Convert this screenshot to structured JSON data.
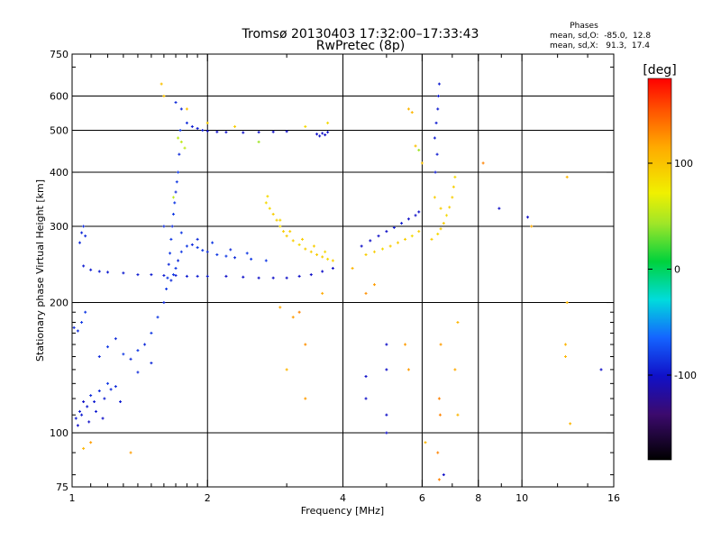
{
  "chart_data": {
    "type": "scatter",
    "title": "Tromsø 20130403 17:32:00–17:33:43",
    "subtitle": "RwPretec (8p)",
    "xlabel": "Frequency [MHz]",
    "ylabel": "Stationary phase Virtual Height [km]",
    "xscale": "log",
    "yscale": "log",
    "xlim": [
      1,
      16
    ],
    "ylim": [
      75,
      750
    ],
    "x_ticks": [
      1,
      2,
      4,
      6,
      8,
      10,
      16
    ],
    "y_ticks": [
      75,
      100,
      200,
      300,
      400,
      500,
      600,
      750
    ],
    "x_minor_ticks": [
      1.1,
      1.2,
      1.3,
      1.4,
      1.5,
      1.6,
      1.7,
      1.8,
      1.9,
      3,
      5,
      7,
      9,
      12,
      14
    ],
    "y_minor_ticks": [
      80,
      90,
      110,
      120,
      130,
      140,
      150,
      160,
      170,
      180,
      190,
      700
    ],
    "x_grid": [
      2,
      4,
      6,
      8,
      10
    ],
    "y_grid": [
      100,
      200,
      300,
      400,
      500,
      600
    ],
    "grid": true,
    "stats": {
      "heading": "Phases",
      "line_o": "mean, sd,O:  -85.0,  12.8",
      "line_x": "mean, sd,X:   91.3,  17.4"
    },
    "colorbar": {
      "label": "[deg]",
      "ticks": [
        100,
        0,
        -100
      ],
      "range": [
        -180,
        180
      ]
    },
    "series": [
      {
        "points": [
          [
            1.02,
            108,
            -95
          ],
          [
            1.04,
            112,
            -95
          ],
          [
            1.06,
            118,
            -100
          ],
          [
            1.08,
            115,
            -95
          ],
          [
            1.1,
            122,
            -90
          ],
          [
            1.12,
            118,
            -95
          ],
          [
            1.15,
            125,
            -90
          ],
          [
            1.18,
            120,
            -95
          ],
          [
            1.2,
            130,
            -85
          ],
          [
            1.22,
            126,
            -90
          ],
          [
            1.25,
            128,
            -90
          ],
          [
            1.28,
            118,
            -95
          ],
          [
            1.03,
            104,
            -100
          ],
          [
            1.05,
            110,
            -95
          ],
          [
            1.09,
            106,
            -100
          ],
          [
            1.13,
            112,
            -95
          ],
          [
            1.17,
            108,
            -100
          ],
          [
            1.01,
            175,
            -90
          ],
          [
            1.03,
            172,
            -90
          ],
          [
            1.05,
            180,
            -85
          ],
          [
            1.07,
            190,
            -85
          ],
          [
            1.15,
            150,
            -90
          ],
          [
            1.2,
            158,
            -85
          ],
          [
            1.25,
            165,
            -90
          ],
          [
            1.3,
            152,
            -85
          ],
          [
            1.35,
            148,
            -90
          ],
          [
            1.4,
            155,
            -85
          ],
          [
            1.45,
            160,
            -90
          ],
          [
            1.5,
            170,
            -85
          ],
          [
            1.55,
            185,
            -85
          ],
          [
            1.6,
            200,
            -90
          ],
          [
            1.62,
            215,
            -85
          ],
          [
            1.63,
            228,
            -85
          ],
          [
            1.64,
            245,
            -90
          ],
          [
            1.65,
            260,
            -85
          ],
          [
            1.66,
            280,
            -85
          ],
          [
            1.67,
            300,
            -90
          ],
          [
            1.68,
            320,
            -85
          ],
          [
            1.69,
            340,
            -85
          ],
          [
            1.7,
            360,
            -90
          ],
          [
            1.71,
            380,
            -85
          ],
          [
            1.72,
            400,
            -85
          ],
          [
            1.73,
            440,
            -90
          ],
          [
            1.74,
            500,
            -85
          ],
          [
            1.66,
            225,
            -90
          ],
          [
            1.68,
            232,
            -85
          ],
          [
            1.7,
            240,
            -85
          ],
          [
            1.72,
            250,
            -90
          ],
          [
            1.75,
            262,
            -85
          ],
          [
            1.8,
            270,
            -85
          ],
          [
            1.85,
            272,
            -90
          ],
          [
            1.9,
            268,
            -85
          ],
          [
            1.95,
            264,
            -85
          ],
          [
            2.0,
            262,
            -90
          ],
          [
            2.1,
            258,
            -85
          ],
          [
            2.2,
            256,
            -85
          ],
          [
            2.3,
            254,
            -90
          ],
          [
            2.5,
            252,
            -85
          ],
          [
            2.7,
            250,
            -85
          ],
          [
            1.6,
            300,
            -90
          ],
          [
            1.75,
            290,
            -85
          ],
          [
            1.9,
            280,
            -90
          ],
          [
            2.05,
            275,
            -85
          ],
          [
            2.25,
            265,
            -90
          ],
          [
            2.45,
            260,
            -85
          ],
          [
            1.06,
            243,
            -95
          ],
          [
            1.1,
            238,
            -95
          ],
          [
            1.15,
            236,
            -95
          ],
          [
            1.2,
            235,
            -95
          ],
          [
            1.3,
            234,
            -95
          ],
          [
            1.4,
            232,
            -95
          ],
          [
            1.5,
            232,
            -95
          ],
          [
            1.6,
            231,
            -95
          ],
          [
            1.7,
            231,
            -95
          ],
          [
            1.8,
            230,
            -95
          ],
          [
            1.9,
            230,
            -95
          ],
          [
            2.0,
            230,
            -95
          ],
          [
            2.2,
            230,
            -100
          ],
          [
            2.4,
            229,
            -100
          ],
          [
            2.6,
            228,
            -100
          ],
          [
            2.8,
            228,
            -100
          ],
          [
            3.0,
            228,
            -100
          ],
          [
            3.2,
            230,
            -100
          ],
          [
            3.4,
            232,
            -100
          ],
          [
            3.6,
            236,
            -100
          ],
          [
            3.8,
            240,
            -100
          ],
          [
            1.04,
            275,
            -90
          ],
          [
            1.05,
            290,
            -90
          ],
          [
            1.06,
            300,
            -90
          ],
          [
            1.07,
            285,
            -90
          ],
          [
            1.7,
            580,
            -90
          ],
          [
            1.75,
            560,
            -90
          ],
          [
            1.8,
            520,
            -90
          ],
          [
            1.85,
            510,
            -95
          ],
          [
            1.9,
            505,
            -95
          ],
          [
            1.95,
            500,
            -95
          ],
          [
            2.0,
            498,
            -100
          ],
          [
            2.1,
            496,
            -100
          ],
          [
            2.2,
            495,
            -100
          ],
          [
            2.4,
            494,
            -100
          ],
          [
            2.6,
            495,
            -100
          ],
          [
            2.8,
            496,
            -100
          ],
          [
            3.0,
            497,
            -100
          ],
          [
            3.5,
            490,
            -100
          ],
          [
            3.55,
            485,
            -100
          ],
          [
            3.6,
            492,
            -100
          ],
          [
            3.65,
            488,
            -100
          ],
          [
            3.7,
            495,
            -100
          ],
          [
            4.4,
            270,
            -100
          ],
          [
            4.6,
            278,
            -100
          ],
          [
            4.8,
            285,
            -100
          ],
          [
            5.0,
            292,
            -100
          ],
          [
            5.2,
            298,
            -95
          ],
          [
            5.4,
            305,
            -95
          ],
          [
            5.6,
            312,
            -100
          ],
          [
            5.8,
            318,
            -100
          ],
          [
            5.9,
            324,
            -100
          ],
          [
            6.4,
            480,
            -95
          ],
          [
            6.45,
            520,
            -95
          ],
          [
            6.5,
            560,
            -95
          ],
          [
            6.52,
            600,
            -95
          ],
          [
            6.55,
            640,
            -95
          ],
          [
            6.48,
            440,
            -95
          ],
          [
            6.42,
            400,
            -95
          ],
          [
            5.0,
            100,
            -100
          ],
          [
            5.0,
            110,
            -100
          ],
          [
            5.0,
            140,
            -100
          ],
          [
            5.0,
            160,
            -100
          ],
          [
            4.5,
            120,
            -100
          ],
          [
            4.5,
            135,
            -100
          ],
          [
            6.7,
            80,
            -100
          ],
          [
            10.3,
            315,
            -100
          ],
          [
            8.9,
            330,
            -100
          ],
          [
            15.0,
            140,
            -100
          ],
          [
            1.4,
            138,
            -90
          ],
          [
            1.5,
            145,
            -90
          ]
        ]
      },
      {
        "points": [
          [
            2.7,
            340,
            95
          ],
          [
            2.75,
            330,
            95
          ],
          [
            2.8,
            320,
            100
          ],
          [
            2.85,
            310,
            100
          ],
          [
            2.9,
            300,
            95
          ],
          [
            2.95,
            292,
            100
          ],
          [
            3.0,
            285,
            100
          ],
          [
            3.1,
            278,
            100
          ],
          [
            3.2,
            272,
            95
          ],
          [
            3.3,
            266,
            100
          ],
          [
            3.4,
            262,
            100
          ],
          [
            3.5,
            258,
            100
          ],
          [
            3.6,
            255,
            100
          ],
          [
            3.7,
            252,
            95
          ],
          [
            3.8,
            250,
            100
          ],
          [
            2.72,
            352,
            95
          ],
          [
            2.9,
            310,
            95
          ],
          [
            3.05,
            292,
            100
          ],
          [
            3.25,
            280,
            100
          ],
          [
            3.45,
            270,
            100
          ],
          [
            3.65,
            262,
            95
          ],
          [
            4.5,
            258,
            100
          ],
          [
            4.7,
            262,
            100
          ],
          [
            4.9,
            266,
            95
          ],
          [
            5.1,
            270,
            100
          ],
          [
            5.3,
            275,
            100
          ],
          [
            5.5,
            280,
            100
          ],
          [
            5.7,
            285,
            95
          ],
          [
            5.9,
            292,
            100
          ],
          [
            6.3,
            280,
            100
          ],
          [
            6.5,
            288,
            95
          ],
          [
            6.6,
            296,
            100
          ],
          [
            6.7,
            305,
            100
          ],
          [
            6.8,
            318,
            95
          ],
          [
            6.9,
            332,
            100
          ],
          [
            7.0,
            350,
            100
          ],
          [
            7.05,
            370,
            100
          ],
          [
            7.1,
            390,
            95
          ],
          [
            1.58,
            640,
            105
          ],
          [
            1.6,
            600,
            105
          ],
          [
            1.8,
            560,
            105
          ],
          [
            2.0,
            520,
            100
          ],
          [
            2.3,
            510,
            100
          ],
          [
            3.3,
            510,
            95
          ],
          [
            3.7,
            520,
            95
          ],
          [
            5.6,
            560,
            110
          ],
          [
            5.7,
            550,
            110
          ],
          [
            5.8,
            460,
            105
          ],
          [
            6.0,
            420,
            105
          ],
          [
            6.4,
            350,
            100
          ],
          [
            6.6,
            330,
            100
          ],
          [
            6.1,
            95,
            110
          ],
          [
            6.5,
            90,
            130
          ],
          [
            6.55,
            120,
            130
          ],
          [
            6.58,
            110,
            130
          ],
          [
            6.6,
            160,
            120
          ],
          [
            6.55,
            78,
            130
          ],
          [
            7.2,
            110,
            110
          ],
          [
            7.1,
            140,
            115
          ],
          [
            7.2,
            180,
            110
          ],
          [
            12.5,
            150,
            110
          ],
          [
            12.5,
            160,
            110
          ],
          [
            12.8,
            105,
            110
          ],
          [
            12.6,
            390,
            110
          ],
          [
            10.5,
            300,
            115
          ],
          [
            12.6,
            200,
            110
          ],
          [
            8.2,
            420,
            130
          ],
          [
            1.35,
            90,
            120
          ],
          [
            1.1,
            95,
            120
          ],
          [
            1.06,
            92,
            110
          ],
          [
            3.3,
            160,
            125
          ],
          [
            3.2,
            190,
            130
          ],
          [
            3.0,
            140,
            110
          ],
          [
            3.3,
            120,
            120
          ],
          [
            3.6,
            210,
            115
          ],
          [
            3.1,
            185,
            120
          ],
          [
            2.9,
            195,
            115
          ],
          [
            4.2,
            240,
            110
          ],
          [
            4.5,
            210,
            125
          ],
          [
            4.7,
            220,
            120
          ],
          [
            5.5,
            160,
            120
          ],
          [
            5.6,
            140,
            120
          ]
        ]
      },
      {
        "points": [
          [
            1.75,
            470,
            60
          ],
          [
            1.72,
            480,
            60
          ],
          [
            1.78,
            455,
            60
          ],
          [
            2.6,
            470,
            45
          ],
          [
            1.68,
            350,
            60
          ],
          [
            5.9,
            450,
            45
          ]
        ]
      }
    ]
  }
}
